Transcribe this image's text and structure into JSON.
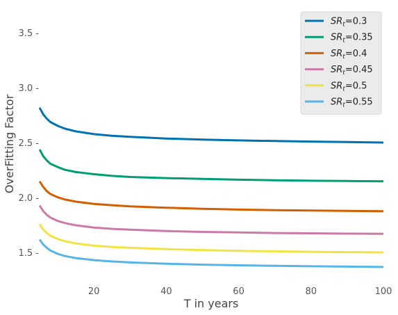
{
  "chart_data": {
    "type": "line",
    "xlabel": "T in years",
    "ylabel": "OverFitting Factor",
    "xlim": [
      5,
      100
    ],
    "ylim": [
      1.25,
      3.75
    ],
    "xticks": [
      20,
      40,
      60,
      80,
      100
    ],
    "yticks": [
      1.5,
      2.0,
      2.5,
      3.0,
      3.5
    ],
    "yticklabels": [
      "1.5 -",
      "2.0 -",
      "2.5 -",
      "3.0 -",
      "3.5 -"
    ],
    "grid": false,
    "legend_position": "top-right",
    "x": [
      5,
      6,
      7,
      8,
      10,
      12,
      15,
      20,
      25,
      30,
      40,
      50,
      60,
      70,
      80,
      90,
      100
    ],
    "series": [
      {
        "name": "=0.3",
        "label_sym": "SR",
        "label_sub": "t",
        "color": "#0072b2",
        "values": [
          2.82,
          2.76,
          2.72,
          2.69,
          2.655,
          2.63,
          2.605,
          2.58,
          2.565,
          2.555,
          2.54,
          2.53,
          2.523,
          2.517,
          2.512,
          2.508,
          2.503
        ]
      },
      {
        "name": "=0.35",
        "label_sym": "SR",
        "label_sub": "t",
        "color": "#009e73",
        "values": [
          2.44,
          2.38,
          2.34,
          2.31,
          2.28,
          2.255,
          2.235,
          2.215,
          2.2,
          2.19,
          2.18,
          2.172,
          2.165,
          2.16,
          2.156,
          2.153,
          2.15
        ]
      },
      {
        "name": "=0.4",
        "label_sym": "SR",
        "label_sub": "t",
        "color": "#d55e00",
        "values": [
          2.15,
          2.1,
          2.06,
          2.035,
          2.005,
          1.985,
          1.965,
          1.945,
          1.933,
          1.923,
          1.91,
          1.9,
          1.893,
          1.888,
          1.884,
          1.881,
          1.878
        ]
      },
      {
        "name": "=0.45",
        "label_sym": "SR",
        "label_sub": "t",
        "color": "#cc79a7",
        "values": [
          1.93,
          1.88,
          1.845,
          1.82,
          1.79,
          1.77,
          1.75,
          1.73,
          1.718,
          1.71,
          1.698,
          1.69,
          1.685,
          1.68,
          1.677,
          1.674,
          1.672
        ]
      },
      {
        "name": "=0.5",
        "label_sym": "SR",
        "label_sub": "t",
        "color": "#f0e442",
        "values": [
          1.76,
          1.71,
          1.68,
          1.655,
          1.625,
          1.605,
          1.585,
          1.565,
          1.553,
          1.545,
          1.533,
          1.525,
          1.518,
          1.513,
          1.509,
          1.506,
          1.503
        ]
      },
      {
        "name": "=0.55",
        "label_sym": "SR",
        "label_sub": "t",
        "color": "#56b4e9",
        "values": [
          1.62,
          1.575,
          1.545,
          1.52,
          1.49,
          1.47,
          1.452,
          1.433,
          1.421,
          1.412,
          1.4,
          1.392,
          1.386,
          1.381,
          1.377,
          1.374,
          1.371
        ]
      }
    ]
  }
}
